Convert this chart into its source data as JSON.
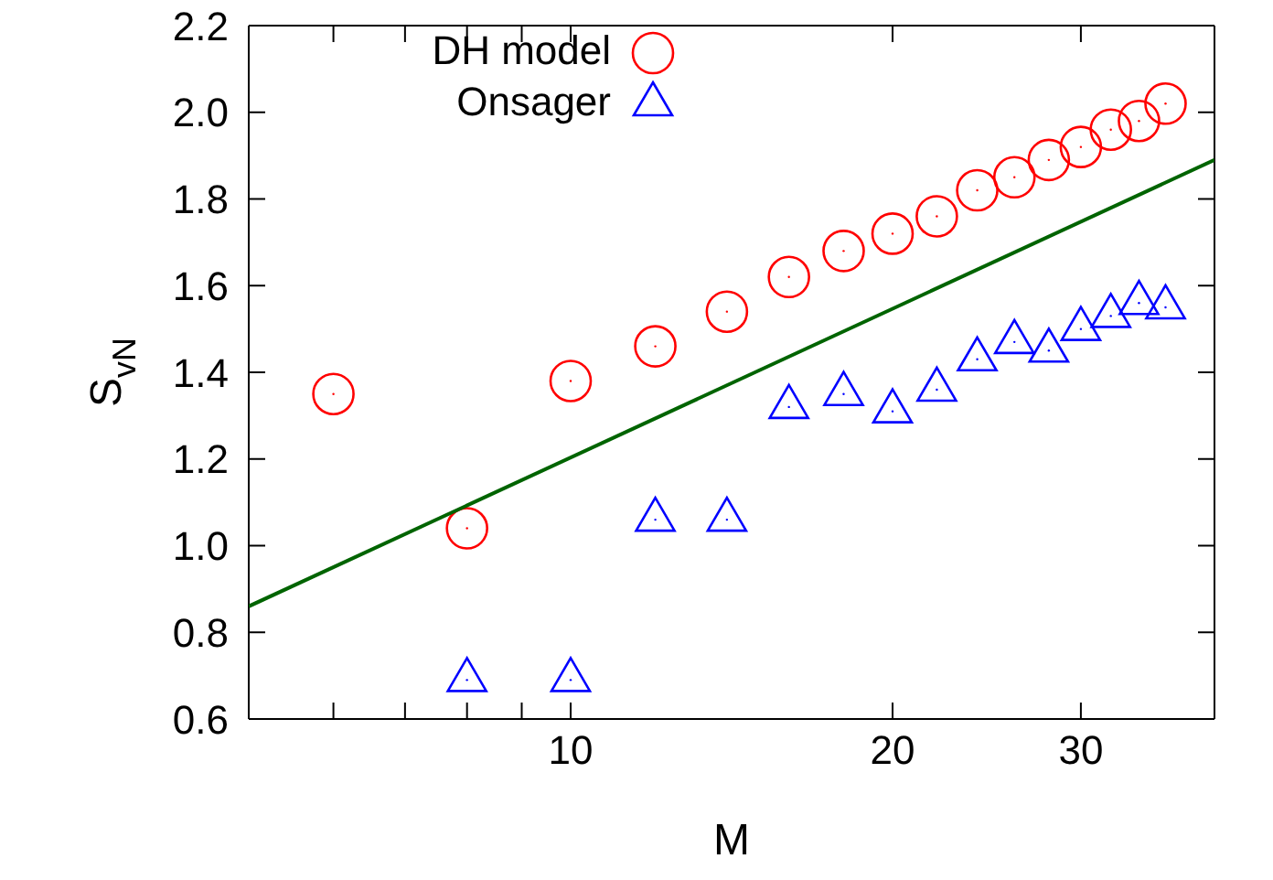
{
  "chart_data": {
    "type": "scatter",
    "xlabel": "M",
    "ylabel": "S$_{vN}$",
    "log": "x",
    "xlim": [
      5,
      40
    ],
    "ylim": [
      0.6,
      2.2
    ],
    "xticks": [
      {
        "value": 6,
        "label": null
      },
      {
        "value": 7,
        "label": null
      },
      {
        "value": 8,
        "label": null
      },
      {
        "value": 9,
        "label": null
      },
      10,
      20,
      30
    ],
    "yticks": [
      0.6,
      0.8,
      {
        "value": 1,
        "label": "1.0"
      },
      1.2,
      1.4,
      1.6,
      1.8,
      {
        "value": 2,
        "label": "2.0"
      },
      2.2
    ],
    "legend": "top left",
    "x": [
      6,
      8,
      10,
      12,
      14,
      16,
      18,
      20,
      22,
      24,
      26,
      28,
      30,
      32,
      34,
      36
    ],
    "series": [
      {
        "name": "DH model",
        "color": "#ff0000",
        "marker": "circle",
        "values": [
          1.35,
          1.04,
          1.38,
          1.46,
          1.54,
          1.62,
          1.68,
          1.72,
          1.76,
          1.82,
          1.85,
          1.89,
          1.92,
          1.96,
          1.98,
          2.02
        ]
      },
      {
        "name": "Onsager",
        "color": "#0000ff",
        "marker": "triangle",
        "values": [
          null,
          0.69,
          0.69,
          1.06,
          1.06,
          1.32,
          1.35,
          1.31,
          1.36,
          1.43,
          1.47,
          1.45,
          1.5,
          1.53,
          1.56,
          1.55
        ]
      },
      {
        "type": "line",
        "color": "#006400",
        "marker": "none",
        "x": [
          5,
          40
        ],
        "values": [
          0.86,
          1.89
        ]
      }
    ]
  }
}
